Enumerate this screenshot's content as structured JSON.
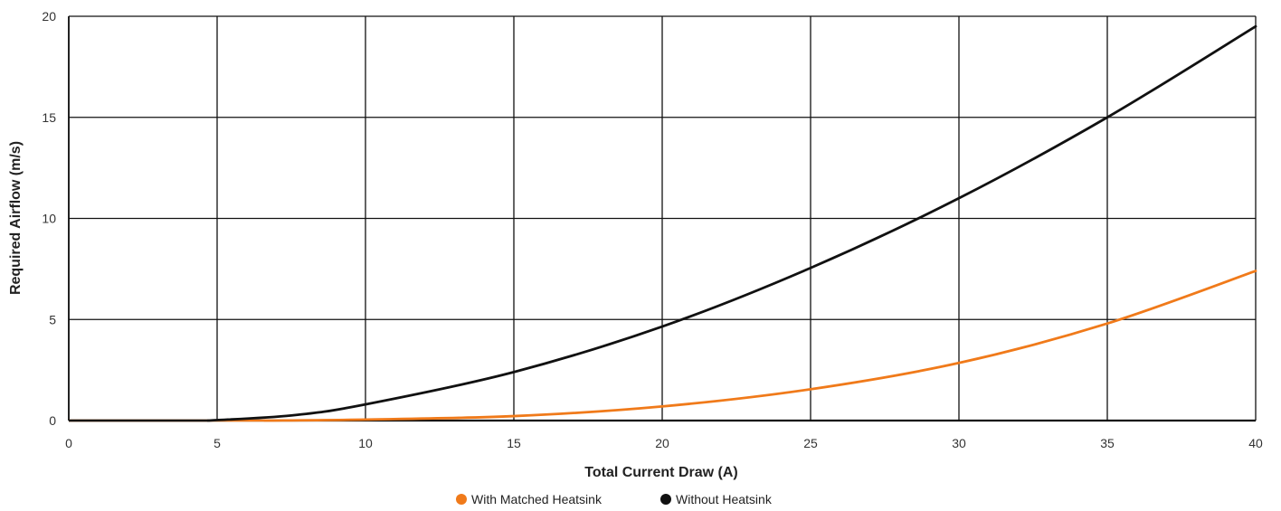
{
  "chart_data": {
    "type": "line",
    "xlabel": "Total Current Draw (A)",
    "ylabel": "Required Airflow (m/s)",
    "xlim": [
      0,
      40
    ],
    "ylim": [
      0,
      20
    ],
    "x_ticks": [
      0,
      5,
      10,
      15,
      20,
      25,
      30,
      35,
      40
    ],
    "y_ticks": [
      0,
      5,
      10,
      15,
      20
    ],
    "x_tick_labels": [
      "0",
      "5",
      "10",
      "15",
      "20",
      "25",
      "30",
      "35",
      "40"
    ],
    "y_tick_labels": [
      "0",
      "5",
      "10",
      "15",
      "20"
    ],
    "grid": true,
    "legend_position": "bottom-center",
    "series": [
      {
        "name": "With Matched Heatsink",
        "color": "#F07A1A",
        "x": [
          6.6,
          10,
          15,
          20,
          25,
          30,
          35,
          40
        ],
        "y": [
          0,
          0.05,
          0.22,
          0.7,
          1.55,
          2.85,
          4.8,
          7.4
        ]
      },
      {
        "name": "Without Heatsink",
        "color": "#111111",
        "x": [
          4.7,
          7.5,
          10,
          15,
          20,
          25,
          30,
          35,
          40
        ],
        "y": [
          0,
          0.25,
          0.8,
          2.4,
          4.65,
          7.55,
          11.0,
          15.0,
          19.5
        ]
      }
    ]
  }
}
